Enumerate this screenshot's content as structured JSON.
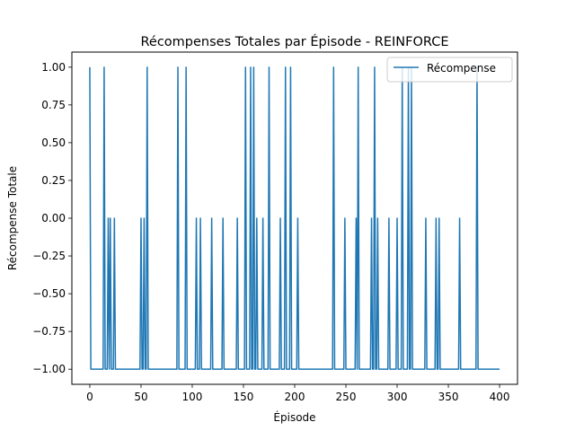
{
  "chart_data": {
    "type": "line",
    "title": "Récompenses Totales par Épisode - REINFORCE",
    "xlabel": "Épisode",
    "ylabel": "Récompense Totale",
    "xlim": [
      -17.5,
      417.5
    ],
    "ylim": [
      -1.1,
      1.1
    ],
    "xticks": [
      0,
      50,
      100,
      150,
      200,
      250,
      300,
      350,
      400
    ],
    "yticks": [
      -1.0,
      -0.75,
      -0.5,
      -0.25,
      0.0,
      0.25,
      0.5,
      0.75,
      1.0
    ],
    "ytick_labels": [
      "−1.00",
      "−0.75",
      "−0.50",
      "−0.25",
      "0.00",
      "0.25",
      "0.50",
      "0.75",
      "1.00"
    ],
    "grid": false,
    "legend_position": "top-right",
    "series": [
      {
        "name": "Récompense",
        "color": "#1f77b4",
        "spikes": [
          [
            0,
            1
          ],
          [
            14,
            1
          ],
          [
            18,
            0
          ],
          [
            20,
            0
          ],
          [
            24,
            0
          ],
          [
            50,
            0
          ],
          [
            53,
            0
          ],
          [
            56,
            1
          ],
          [
            86,
            1
          ],
          [
            94,
            1
          ],
          [
            104,
            0
          ],
          [
            108,
            0
          ],
          [
            119,
            0
          ],
          [
            130,
            0
          ],
          [
            144,
            0
          ],
          [
            152,
            1
          ],
          [
            157,
            1
          ],
          [
            160,
            1
          ],
          [
            163,
            0
          ],
          [
            169,
            0
          ],
          [
            175,
            1
          ],
          [
            186,
            0
          ],
          [
            191,
            1
          ],
          [
            196,
            1
          ],
          [
            203,
            0
          ],
          [
            238,
            1
          ],
          [
            249,
            0
          ],
          [
            260,
            0
          ],
          [
            262,
            1
          ],
          [
            275,
            0
          ],
          [
            278,
            1
          ],
          [
            281,
            0
          ],
          [
            292,
            0
          ],
          [
            300,
            0
          ],
          [
            305,
            1
          ],
          [
            311,
            1
          ],
          [
            314,
            1
          ],
          [
            328,
            0
          ],
          [
            338,
            0
          ],
          [
            341,
            0
          ],
          [
            361,
            0
          ],
          [
            378,
            1
          ]
        ],
        "x_end": 400,
        "baseline": -1
      }
    ]
  }
}
